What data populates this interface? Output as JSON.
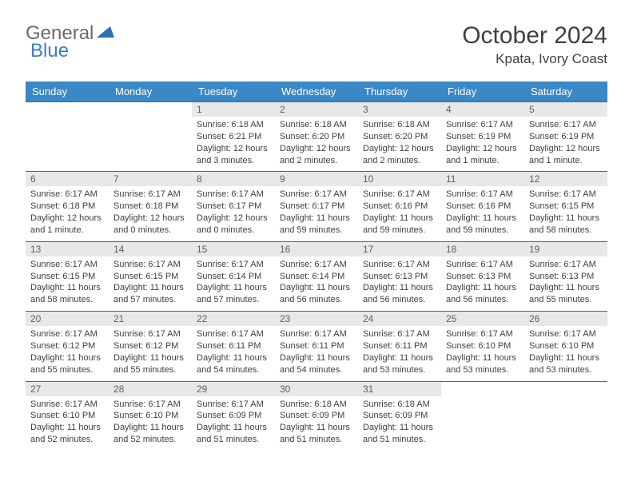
{
  "logo": {
    "general": "General",
    "blue": "Blue"
  },
  "title": "October 2024",
  "location": "Kpata, Ivory Coast",
  "colors": {
    "header_bg": "#3a88c6",
    "header_text": "#ffffff",
    "daynum_bg": "#e8e8e8",
    "daynum_text": "#606060",
    "border": "#3a6a9a",
    "logo_gray": "#6a6a6a",
    "logo_blue": "#3a7fc4"
  },
  "weekdays": [
    "Sunday",
    "Monday",
    "Tuesday",
    "Wednesday",
    "Thursday",
    "Friday",
    "Saturday"
  ],
  "weeks": [
    [
      null,
      null,
      {
        "n": "1",
        "sr": "6:18 AM",
        "ss": "6:21 PM",
        "dl": "12 hours and 3 minutes."
      },
      {
        "n": "2",
        "sr": "6:18 AM",
        "ss": "6:20 PM",
        "dl": "12 hours and 2 minutes."
      },
      {
        "n": "3",
        "sr": "6:18 AM",
        "ss": "6:20 PM",
        "dl": "12 hours and 2 minutes."
      },
      {
        "n": "4",
        "sr": "6:17 AM",
        "ss": "6:19 PM",
        "dl": "12 hours and 1 minute."
      },
      {
        "n": "5",
        "sr": "6:17 AM",
        "ss": "6:19 PM",
        "dl": "12 hours and 1 minute."
      }
    ],
    [
      {
        "n": "6",
        "sr": "6:17 AM",
        "ss": "6:18 PM",
        "dl": "12 hours and 1 minute."
      },
      {
        "n": "7",
        "sr": "6:17 AM",
        "ss": "6:18 PM",
        "dl": "12 hours and 0 minutes."
      },
      {
        "n": "8",
        "sr": "6:17 AM",
        "ss": "6:17 PM",
        "dl": "12 hours and 0 minutes."
      },
      {
        "n": "9",
        "sr": "6:17 AM",
        "ss": "6:17 PM",
        "dl": "11 hours and 59 minutes."
      },
      {
        "n": "10",
        "sr": "6:17 AM",
        "ss": "6:16 PM",
        "dl": "11 hours and 59 minutes."
      },
      {
        "n": "11",
        "sr": "6:17 AM",
        "ss": "6:16 PM",
        "dl": "11 hours and 59 minutes."
      },
      {
        "n": "12",
        "sr": "6:17 AM",
        "ss": "6:15 PM",
        "dl": "11 hours and 58 minutes."
      }
    ],
    [
      {
        "n": "13",
        "sr": "6:17 AM",
        "ss": "6:15 PM",
        "dl": "11 hours and 58 minutes."
      },
      {
        "n": "14",
        "sr": "6:17 AM",
        "ss": "6:15 PM",
        "dl": "11 hours and 57 minutes."
      },
      {
        "n": "15",
        "sr": "6:17 AM",
        "ss": "6:14 PM",
        "dl": "11 hours and 57 minutes."
      },
      {
        "n": "16",
        "sr": "6:17 AM",
        "ss": "6:14 PM",
        "dl": "11 hours and 56 minutes."
      },
      {
        "n": "17",
        "sr": "6:17 AM",
        "ss": "6:13 PM",
        "dl": "11 hours and 56 minutes."
      },
      {
        "n": "18",
        "sr": "6:17 AM",
        "ss": "6:13 PM",
        "dl": "11 hours and 56 minutes."
      },
      {
        "n": "19",
        "sr": "6:17 AM",
        "ss": "6:13 PM",
        "dl": "11 hours and 55 minutes."
      }
    ],
    [
      {
        "n": "20",
        "sr": "6:17 AM",
        "ss": "6:12 PM",
        "dl": "11 hours and 55 minutes."
      },
      {
        "n": "21",
        "sr": "6:17 AM",
        "ss": "6:12 PM",
        "dl": "11 hours and 55 minutes."
      },
      {
        "n": "22",
        "sr": "6:17 AM",
        "ss": "6:11 PM",
        "dl": "11 hours and 54 minutes."
      },
      {
        "n": "23",
        "sr": "6:17 AM",
        "ss": "6:11 PM",
        "dl": "11 hours and 54 minutes."
      },
      {
        "n": "24",
        "sr": "6:17 AM",
        "ss": "6:11 PM",
        "dl": "11 hours and 53 minutes."
      },
      {
        "n": "25",
        "sr": "6:17 AM",
        "ss": "6:10 PM",
        "dl": "11 hours and 53 minutes."
      },
      {
        "n": "26",
        "sr": "6:17 AM",
        "ss": "6:10 PM",
        "dl": "11 hours and 53 minutes."
      }
    ],
    [
      {
        "n": "27",
        "sr": "6:17 AM",
        "ss": "6:10 PM",
        "dl": "11 hours and 52 minutes."
      },
      {
        "n": "28",
        "sr": "6:17 AM",
        "ss": "6:10 PM",
        "dl": "11 hours and 52 minutes."
      },
      {
        "n": "29",
        "sr": "6:17 AM",
        "ss": "6:09 PM",
        "dl": "11 hours and 51 minutes."
      },
      {
        "n": "30",
        "sr": "6:18 AM",
        "ss": "6:09 PM",
        "dl": "11 hours and 51 minutes."
      },
      {
        "n": "31",
        "sr": "6:18 AM",
        "ss": "6:09 PM",
        "dl": "11 hours and 51 minutes."
      },
      null,
      null
    ]
  ],
  "labels": {
    "sunrise": "Sunrise:",
    "sunset": "Sunset:",
    "daylight": "Daylight:"
  }
}
